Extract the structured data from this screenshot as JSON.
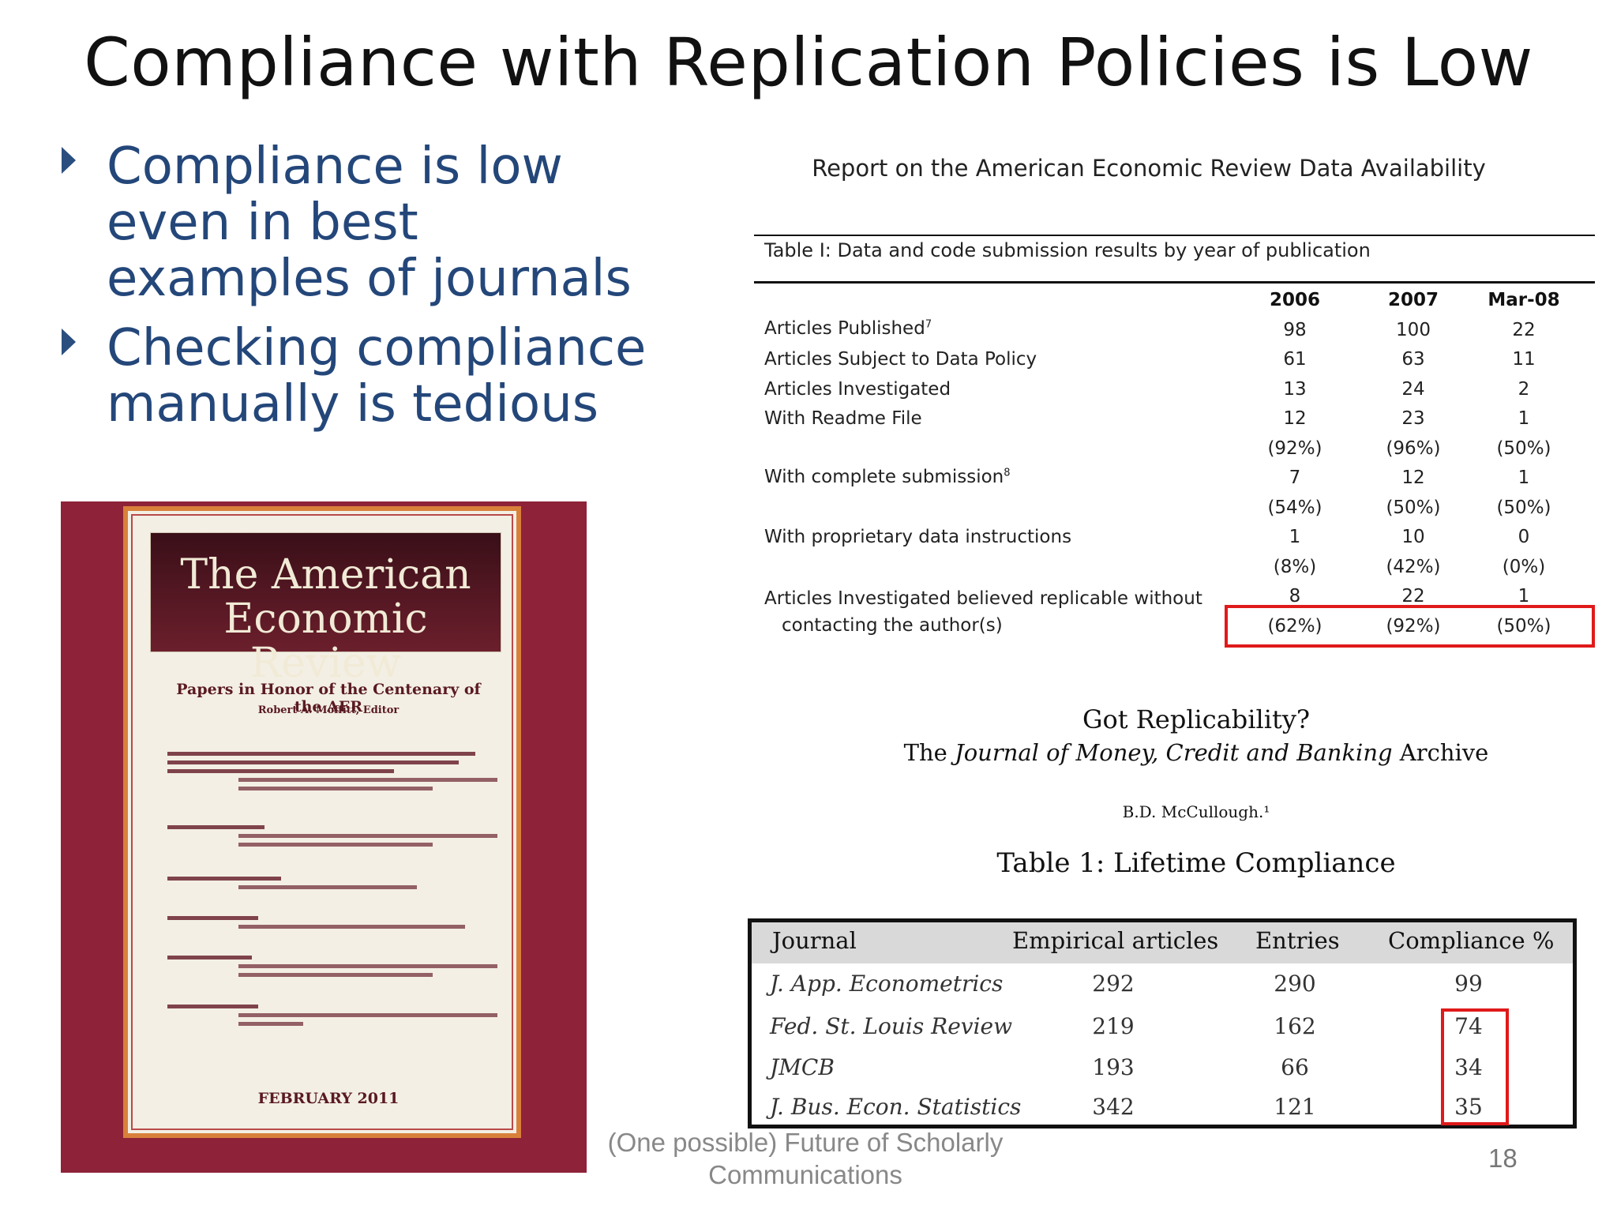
{
  "slide": {
    "title": "Compliance with Replication Policies is Low",
    "bullets": [
      "Compliance is low even in best examples of journals",
      "Checking compliance manually is tedious"
    ],
    "footer": "(One possible) Future of Scholarly Communications",
    "page_number": "18"
  },
  "cover": {
    "title_line1": "The American",
    "title_line2": "Economic Review",
    "subtitle": "Papers in Honor of the Centenary of the AER",
    "editor": "Robert A. Moffitt, Editor",
    "date": "FEBRUARY 2011"
  },
  "aer": {
    "heading": "Report on the American Economic Review Data Availability",
    "caption": "Table I:  Data and code submission results by year of publication",
    "columns": [
      "2006",
      "2007",
      "Mar-08"
    ],
    "rows": [
      {
        "label": "Articles Published",
        "sup": "7",
        "values": [
          "98",
          "100",
          "22"
        ]
      },
      {
        "label": "Articles Subject to Data Policy",
        "values": [
          "61",
          "63",
          "11"
        ]
      },
      {
        "label": "Articles Investigated",
        "values": [
          "13",
          "24",
          "2"
        ]
      },
      {
        "label": "With Readme File",
        "values": [
          "12",
          "23",
          "1"
        ]
      },
      {
        "label": "",
        "values": [
          "(92%)",
          "(96%)",
          "(50%)"
        ]
      },
      {
        "label": "With complete submission",
        "sup": "8",
        "values": [
          "7",
          "12",
          "1"
        ]
      },
      {
        "label": "",
        "values": [
          "(54%)",
          "(50%)",
          "(50%)"
        ]
      },
      {
        "label": "With proprietary data instructions",
        "values": [
          "1",
          "10",
          "0"
        ]
      },
      {
        "label": "",
        "values": [
          "(8%)",
          "(42%)",
          "(0%)"
        ]
      },
      {
        "label": "Articles Investigated believed replicable without",
        "values": [
          "8",
          "22",
          "1"
        ]
      },
      {
        "label": "contacting the author(s)",
        "values": [
          "(62%)",
          "(92%)",
          "(50%)"
        ]
      }
    ]
  },
  "jmcb": {
    "title": "Got Replicability?",
    "sub_prefix": "The ",
    "sub_italic": "Journal of Money, Credit and Banking",
    "sub_suffix": " Archive",
    "author": "B.D. McCullough.¹",
    "table_title": "Table 1: Lifetime Compliance",
    "headers": [
      "Journal",
      "Empirical articles",
      "Entries",
      "Compliance %"
    ],
    "rows": [
      {
        "journal": "J. App. Econometrics",
        "articles": "292",
        "entries": "290",
        "compliance": "99"
      },
      {
        "journal": "Fed. St. Louis Review",
        "articles": "219",
        "entries": "162",
        "compliance": "74"
      },
      {
        "journal": "JMCB",
        "articles": "193",
        "entries": "66",
        "compliance": "34"
      },
      {
        "journal": "J. Bus. Econ. Statistics",
        "articles": "342",
        "entries": "121",
        "compliance": "35"
      }
    ]
  },
  "colors": {
    "bullet_text": "#24477a",
    "cover_background": "#8e2238",
    "cover_frame": "#d8803a",
    "highlight": "#e01a1a"
  }
}
